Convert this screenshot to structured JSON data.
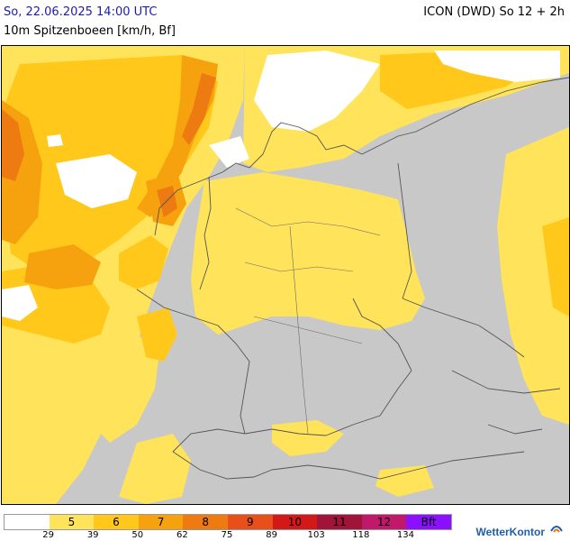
{
  "header": {
    "datetime": "So, 22.06.2025 14:00 UTC",
    "model": "ICON (DWD) So 12 + 2h",
    "variable": "10m Spitzenboeen [km/h, Bf]"
  },
  "map": {
    "colors": {
      "land_base": "#c8c8c8",
      "bf5": "#ffe35a",
      "bf6": "#ffc81a",
      "bf7": "#f6a20e",
      "bf8": "#ee7a12",
      "calm": "#ffffff",
      "borders": "#555555"
    }
  },
  "legend": {
    "cells": [
      {
        "label": "",
        "color": "#ffffff"
      },
      {
        "label": "5",
        "color": "#ffe35a"
      },
      {
        "label": "6",
        "color": "#ffc81a"
      },
      {
        "label": "7",
        "color": "#f6a20e"
      },
      {
        "label": "8",
        "color": "#ee7a12"
      },
      {
        "label": "9",
        "color": "#e84f1a"
      },
      {
        "label": "10",
        "color": "#d41818"
      },
      {
        "label": "11",
        "color": "#a0143a"
      },
      {
        "label": "12",
        "color": "#c0186a"
      },
      {
        "label": "Bft",
        "color": "#8a10ff"
      }
    ],
    "ticks": [
      "29",
      "39",
      "50",
      "62",
      "75",
      "89",
      "103",
      "118",
      "134"
    ]
  },
  "brand": {
    "name": "WetterKontor",
    "icon": "wetterkontor-logo-icon"
  }
}
